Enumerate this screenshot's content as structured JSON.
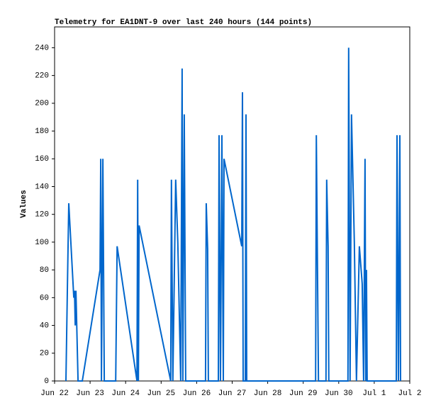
{
  "chart_data": {
    "type": "line",
    "title": "Telemetry for EA1DNT-9 over last 240 hours (144 points)",
    "ylabel": "Values",
    "color": "#0066cc",
    "x": [
      0.32,
      0.36,
      0.4,
      0.54,
      0.56,
      0.58,
      0.6,
      0.66,
      0.78,
      1.28,
      1.3,
      1.32,
      1.36,
      1.38,
      1.4,
      1.72,
      1.76,
      2.32,
      2.34,
      2.36,
      2.38,
      3.27,
      3.29,
      3.33,
      3.41,
      3.47,
      3.55,
      3.59,
      3.61,
      3.65,
      3.69,
      4.25,
      4.27,
      4.31,
      4.33,
      4.61,
      4.63,
      4.67,
      4.71,
      4.75,
      4.77,
      5.27,
      5.29,
      5.31,
      5.37,
      5.39,
      5.41,
      7.35,
      7.37,
      7.43,
      7.64,
      7.66,
      7.7,
      7.72,
      8.26,
      8.28,
      8.32,
      8.36,
      8.44,
      8.5,
      8.58,
      8.66,
      8.7,
      8.74,
      8.76,
      8.78,
      8.8,
      9.62,
      9.64,
      9.68,
      9.72,
      9.74
    ],
    "values": [
      0,
      65,
      128,
      60,
      65,
      40,
      65,
      0,
      0,
      80,
      160,
      0,
      160,
      80,
      0,
      0,
      97,
      0,
      145,
      0,
      112,
      0,
      145,
      0,
      145,
      100,
      0,
      225,
      0,
      192,
      0,
      0,
      128,
      95,
      0,
      0,
      177,
      0,
      177,
      0,
      160,
      97,
      208,
      0,
      0,
      192,
      0,
      0,
      177,
      0,
      0,
      145,
      97,
      0,
      0,
      240,
      0,
      192,
      100,
      0,
      97,
      70,
      0,
      160,
      0,
      80,
      0,
      0,
      177,
      0,
      177,
      0
    ],
    "xlim": [
      0,
      10
    ],
    "xticks": [
      {
        "value": 0,
        "label": "Jun 22"
      },
      {
        "value": 1,
        "label": "Jun 23"
      },
      {
        "value": 2,
        "label": "Jun 24"
      },
      {
        "value": 3,
        "label": "Jun 25"
      },
      {
        "value": 4,
        "label": "Jun 26"
      },
      {
        "value": 5,
        "label": "Jun 27"
      },
      {
        "value": 6,
        "label": "Jun 28"
      },
      {
        "value": 7,
        "label": "Jun 29"
      },
      {
        "value": 8,
        "label": "Jun 30"
      },
      {
        "value": 9,
        "label": "Jul 1"
      },
      {
        "value": 10,
        "label": "Jul 2"
      }
    ],
    "ylim": [
      0,
      255
    ],
    "yticks": [
      0,
      20,
      40,
      60,
      80,
      100,
      120,
      140,
      160,
      180,
      200,
      220,
      240
    ]
  }
}
